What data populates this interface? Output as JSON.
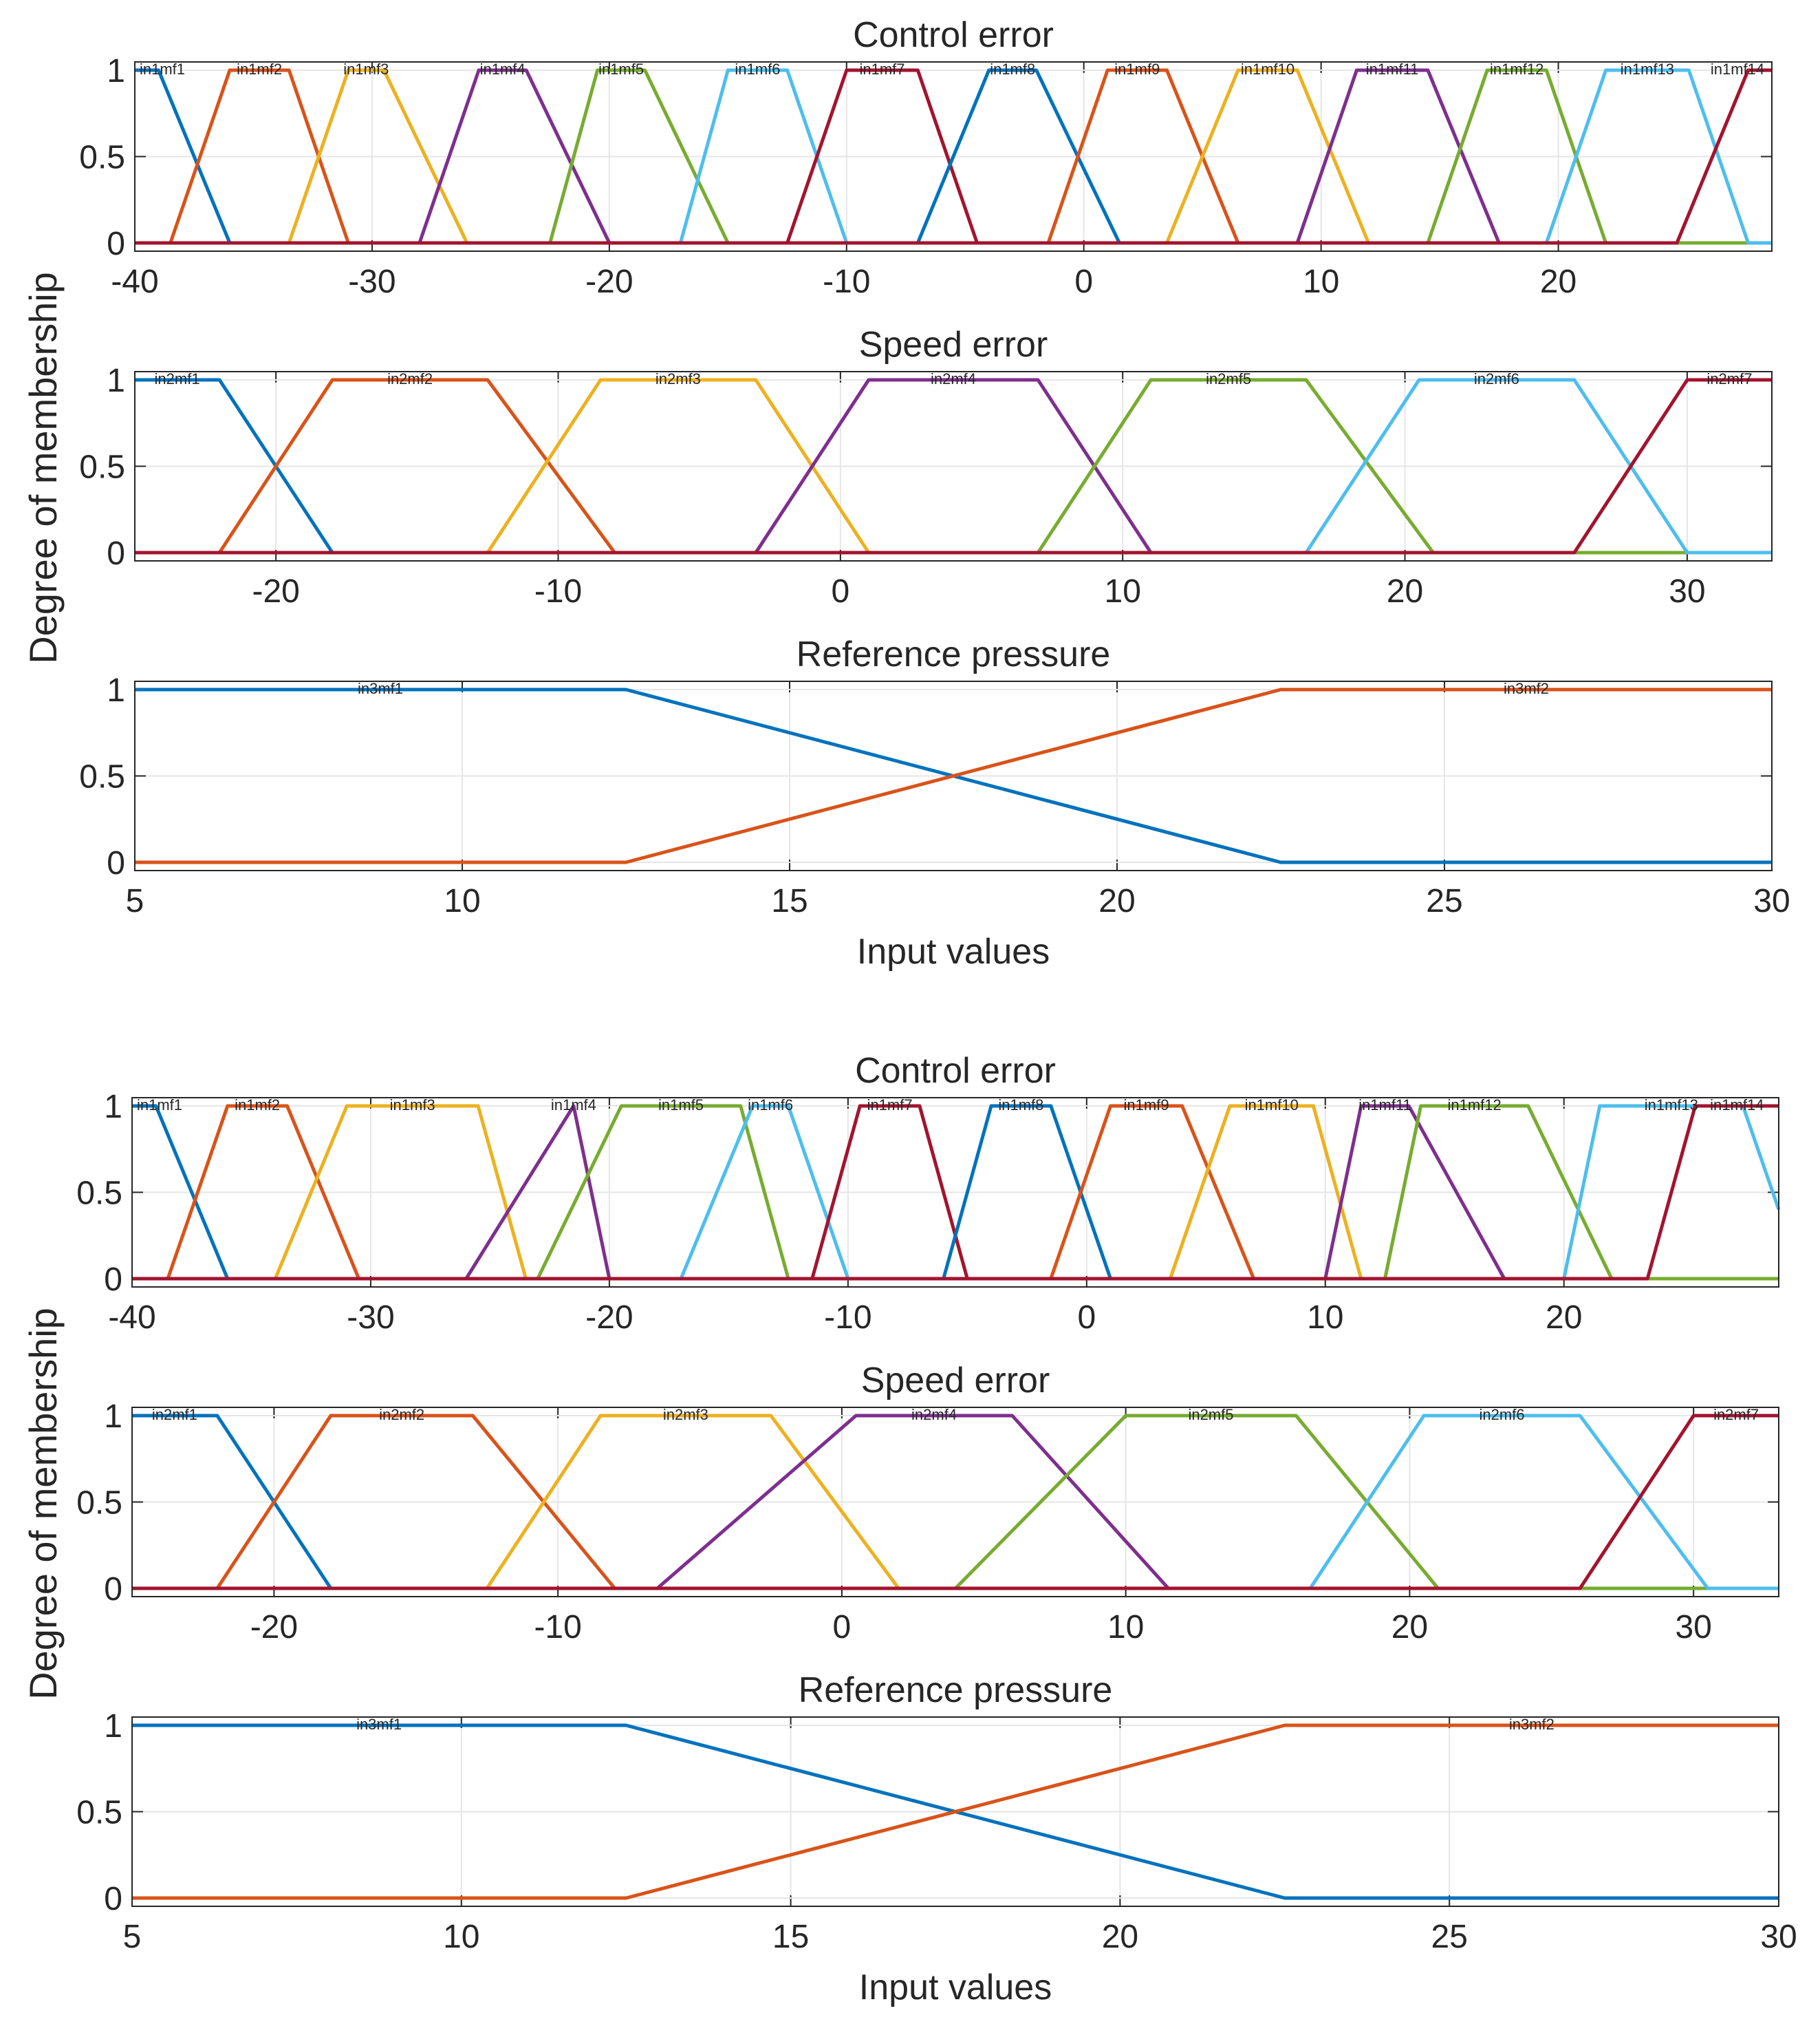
{
  "chart_data": [
    {
      "type": "line",
      "group": 1,
      "title": "Control error",
      "xlim": [
        -40,
        29
      ],
      "ylim": [
        0,
        1
      ],
      "xticks": [
        "-40",
        "-30",
        "-20",
        "-10",
        "0",
        "10",
        "20"
      ],
      "yticks": [
        "0",
        "0.5",
        "1"
      ],
      "xlabel": "",
      "series": [
        {
          "name": "in1mf1",
          "color": "#0072BD",
          "x": [
            -40,
            -39,
            -36,
            -35
          ],
          "y": [
            1,
            1,
            0,
            0
          ]
        },
        {
          "name": "in1mf2",
          "color": "#D95319",
          "x": [
            -38.5,
            -36,
            -33.5,
            -31
          ],
          "y": [
            0,
            1,
            1,
            0
          ]
        },
        {
          "name": "in1mf3",
          "color": "#EDB120",
          "x": [
            -33.5,
            -31,
            -29.5,
            -26
          ],
          "y": [
            0,
            1,
            1,
            0
          ]
        },
        {
          "name": "in1mf4",
          "color": "#7E2F8E",
          "x": [
            -28,
            -25.5,
            -23.5,
            -20
          ],
          "y": [
            0,
            1,
            1,
            0
          ]
        },
        {
          "name": "in1mf5",
          "color": "#77AC30",
          "x": [
            -22.5,
            -20.5,
            -18.5,
            -15
          ],
          "y": [
            0,
            1,
            1,
            0
          ]
        },
        {
          "name": "in1mf6",
          "color": "#4DBEEE",
          "x": [
            -17,
            -15,
            -12.5,
            -10
          ],
          "y": [
            0,
            1,
            1,
            0
          ]
        },
        {
          "name": "in1mf7",
          "color": "#A2142F",
          "x": [
            -12.5,
            -10,
            -7,
            -4.5
          ],
          "y": [
            0,
            1,
            1,
            0
          ]
        },
        {
          "name": "in1mf8",
          "color": "#0072BD",
          "x": [
            -7,
            -4,
            -2,
            1.5
          ],
          "y": [
            0,
            1,
            1,
            0
          ]
        },
        {
          "name": "in1mf9",
          "color": "#D95319",
          "x": [
            -1.5,
            1,
            3.5,
            6.5
          ],
          "y": [
            0,
            1,
            1,
            0
          ]
        },
        {
          "name": "in1mf10",
          "color": "#EDB120",
          "x": [
            3.5,
            6.5,
            9,
            12
          ],
          "y": [
            0,
            1,
            1,
            0
          ]
        },
        {
          "name": "in1mf11",
          "color": "#7E2F8E",
          "x": [
            9,
            11.5,
            14.5,
            17.5
          ],
          "y": [
            0,
            1,
            1,
            0
          ]
        },
        {
          "name": "in1mf12",
          "color": "#77AC30",
          "x": [
            14.5,
            17,
            19.5,
            22
          ],
          "y": [
            0,
            1,
            1,
            0
          ]
        },
        {
          "name": "in1mf13",
          "color": "#4DBEEE",
          "x": [
            19.5,
            22,
            25.5,
            28
          ],
          "y": [
            0,
            1,
            1,
            0
          ]
        },
        {
          "name": "in1mf14",
          "color": "#A2142F",
          "x": [
            25,
            28,
            29
          ],
          "y": [
            0,
            1,
            1
          ]
        }
      ]
    },
    {
      "type": "line",
      "group": 1,
      "title": "Speed error",
      "xlim": [
        -25,
        33
      ],
      "ylim": [
        0,
        1
      ],
      "xticks": [
        "-20",
        "-10",
        "0",
        "10",
        "20",
        "30"
      ],
      "yticks": [
        "0",
        "0.5",
        "1"
      ],
      "xlabel": "",
      "series": [
        {
          "name": "in2mf1",
          "color": "#0072BD",
          "x": [
            -25,
            -22,
            -18,
            -17
          ],
          "y": [
            1,
            1,
            0,
            0
          ]
        },
        {
          "name": "in2mf2",
          "color": "#D95319",
          "x": [
            -22,
            -18,
            -12.5,
            -8
          ],
          "y": [
            0,
            1,
            1,
            0
          ]
        },
        {
          "name": "in2mf3",
          "color": "#EDB120",
          "x": [
            -12.5,
            -8.5,
            -3,
            1
          ],
          "y": [
            0,
            1,
            1,
            0
          ]
        },
        {
          "name": "in2mf4",
          "color": "#7E2F8E",
          "x": [
            -3,
            1,
            7,
            11
          ],
          "y": [
            0,
            1,
            1,
            0
          ]
        },
        {
          "name": "in2mf5",
          "color": "#77AC30",
          "x": [
            7,
            11,
            16.5,
            21
          ],
          "y": [
            0,
            1,
            1,
            0
          ]
        },
        {
          "name": "in2mf6",
          "color": "#4DBEEE",
          "x": [
            16.5,
            20.5,
            26,
            30
          ],
          "y": [
            0,
            1,
            1,
            0
          ]
        },
        {
          "name": "in2mf7",
          "color": "#A2142F",
          "x": [
            26,
            30,
            33
          ],
          "y": [
            0,
            1,
            1
          ]
        }
      ]
    },
    {
      "type": "line",
      "group": 1,
      "title": "Reference pressure",
      "xlim": [
        5,
        30
      ],
      "ylim": [
        0,
        1
      ],
      "xticks": [
        "5",
        "10",
        "15",
        "20",
        "25",
        "30"
      ],
      "yticks": [
        "0",
        "0.5",
        "1"
      ],
      "xlabel": "Input values",
      "series": [
        {
          "name": "in3mf1",
          "color": "#0072BD",
          "x": [
            5,
            12.5,
            22.5,
            30
          ],
          "y": [
            1,
            1,
            0,
            0
          ]
        },
        {
          "name": "in3mf2",
          "color": "#D95319",
          "x": [
            5,
            12.5,
            22.5,
            30
          ],
          "y": [
            0,
            0,
            1,
            1
          ]
        }
      ]
    },
    {
      "type": "line",
      "group": 2,
      "title": "Control error",
      "xlim": [
        -40,
        29
      ],
      "ylim": [
        0,
        1
      ],
      "xticks": [
        "-40",
        "-30",
        "-20",
        "-10",
        "0",
        "10",
        "20"
      ],
      "yticks": [
        "0",
        "0.5",
        "1"
      ],
      "xlabel": "",
      "series": [
        {
          "name": "in1mf1",
          "color": "#0072BD",
          "x": [
            -40,
            -39,
            -36,
            -35
          ],
          "y": [
            1,
            1,
            0,
            0
          ]
        },
        {
          "name": "in1mf2",
          "color": "#D95319",
          "x": [
            -38.5,
            -36,
            -33.5,
            -30.5
          ],
          "y": [
            0,
            1,
            1,
            0
          ]
        },
        {
          "name": "in1mf3",
          "color": "#EDB120",
          "x": [
            -34,
            -31,
            -25.5,
            -23.5
          ],
          "y": [
            0,
            1,
            1,
            0
          ]
        },
        {
          "name": "in1mf4",
          "color": "#7E2F8E",
          "x": [
            -26,
            -21.5,
            -20
          ],
          "y": [
            0,
            1,
            0
          ]
        },
        {
          "name": "in1mf5",
          "color": "#77AC30",
          "x": [
            -23,
            -19.5,
            -14.5,
            -12.5
          ],
          "y": [
            0,
            1,
            1,
            0
          ]
        },
        {
          "name": "in1mf6",
          "color": "#4DBEEE",
          "x": [
            -17,
            -14,
            -12.5,
            -10
          ],
          "y": [
            0,
            1,
            1,
            0
          ]
        },
        {
          "name": "in1mf7",
          "color": "#A2142F",
          "x": [
            -11.5,
            -9.5,
            -7,
            -5
          ],
          "y": [
            0,
            1,
            1,
            0
          ]
        },
        {
          "name": "in1mf8",
          "color": "#0072BD",
          "x": [
            -6,
            -4,
            -1.5,
            1
          ],
          "y": [
            0,
            1,
            1,
            0
          ]
        },
        {
          "name": "in1mf9",
          "color": "#D95319",
          "x": [
            -1.5,
            1,
            4,
            7
          ],
          "y": [
            0,
            1,
            1,
            0
          ]
        },
        {
          "name": "in1mf10",
          "color": "#EDB120",
          "x": [
            3.5,
            6,
            9.5,
            11.5
          ],
          "y": [
            0,
            1,
            1,
            0
          ]
        },
        {
          "name": "in1mf11",
          "color": "#7E2F8E",
          "x": [
            10,
            11.5,
            13.5,
            17.5
          ],
          "y": [
            0,
            1,
            1,
            0
          ]
        },
        {
          "name": "in1mf12",
          "color": "#77AC30",
          "x": [
            12.5,
            14,
            18.5,
            22
          ],
          "y": [
            0,
            1,
            1,
            0
          ]
        },
        {
          "name": "in1mf13",
          "color": "#4DBEEE",
          "x": [
            20,
            21.5,
            26,
            27.5,
            29
          ],
          "y": [
            0,
            1,
            1,
            1,
            0.4
          ]
        },
        {
          "name": "in1mf14",
          "color": "#A2142F",
          "x": [
            23.5,
            25.5,
            27.5,
            29
          ],
          "y": [
            0,
            1,
            1,
            1
          ]
        }
      ]
    },
    {
      "type": "line",
      "group": 2,
      "title": "Speed error",
      "xlim": [
        -25,
        33
      ],
      "ylim": [
        0,
        1
      ],
      "xticks": [
        "-20",
        "-10",
        "0",
        "10",
        "20",
        "30"
      ],
      "yticks": [
        "0",
        "0.5",
        "1"
      ],
      "xlabel": "",
      "series": [
        {
          "name": "in2mf1",
          "color": "#0072BD",
          "x": [
            -25,
            -22,
            -18,
            -17
          ],
          "y": [
            1,
            1,
            0,
            0
          ]
        },
        {
          "name": "in2mf2",
          "color": "#D95319",
          "x": [
            -22,
            -18,
            -13,
            -8
          ],
          "y": [
            0,
            1,
            1,
            0
          ]
        },
        {
          "name": "in2mf3",
          "color": "#EDB120",
          "x": [
            -12.5,
            -8.5,
            -2.5,
            2
          ],
          "y": [
            0,
            1,
            1,
            0
          ]
        },
        {
          "name": "in2mf4",
          "color": "#7E2F8E",
          "x": [
            -6.5,
            0.5,
            6,
            11.5
          ],
          "y": [
            0,
            1,
            1,
            0
          ]
        },
        {
          "name": "in2mf5",
          "color": "#77AC30",
          "x": [
            4,
            10,
            16,
            21
          ],
          "y": [
            0,
            1,
            1,
            0
          ]
        },
        {
          "name": "in2mf6",
          "color": "#4DBEEE",
          "x": [
            16.5,
            20.5,
            26,
            30.5
          ],
          "y": [
            0,
            1,
            1,
            0
          ]
        },
        {
          "name": "in2mf7",
          "color": "#A2142F",
          "x": [
            26,
            30,
            33
          ],
          "y": [
            0,
            1,
            1
          ]
        }
      ]
    },
    {
      "type": "line",
      "group": 2,
      "title": "Reference pressure",
      "xlim": [
        5,
        30
      ],
      "ylim": [
        0,
        1
      ],
      "xticks": [
        "5",
        "10",
        "15",
        "20",
        "25",
        "30"
      ],
      "yticks": [
        "0",
        "0.5",
        "1"
      ],
      "xlabel": "Input values",
      "series": [
        {
          "name": "in3mf1",
          "color": "#0072BD",
          "x": [
            5,
            12.5,
            22.5,
            30
          ],
          "y": [
            1,
            1,
            0,
            0
          ]
        },
        {
          "name": "in3mf2",
          "color": "#D95319",
          "x": [
            5,
            12.5,
            22.5,
            30
          ],
          "y": [
            0,
            0,
            1,
            1
          ]
        }
      ]
    }
  ],
  "shared_ylabel": "Degree of membership"
}
